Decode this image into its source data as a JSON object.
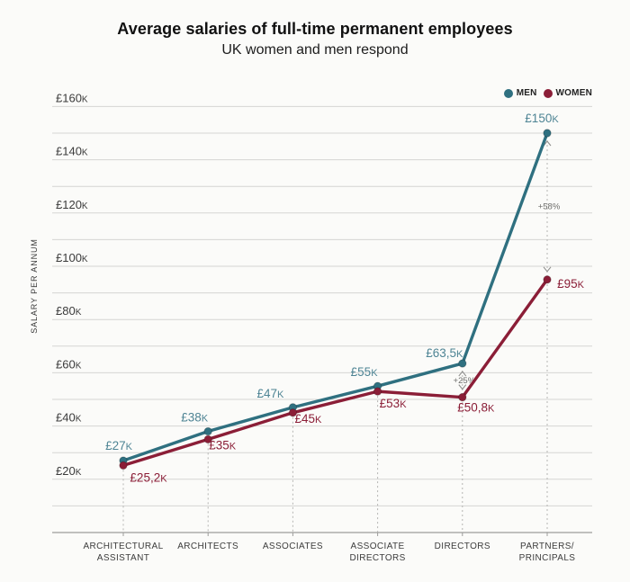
{
  "chart_data": {
    "type": "line",
    "title": "Average salaries of full-time permanent employees",
    "subtitle": "UK women and men respond",
    "ylabel": "SALARY PER ANNUM",
    "xlabel": "",
    "grid": true,
    "legend_position": "top-right",
    "ylim": [
      0,
      160
    ],
    "y_unit": "GBP thousands",
    "y_axis": {
      "grid_step": 10,
      "label_step": 20,
      "ticks": [
        {
          "value": 160,
          "label": "£160K"
        },
        {
          "value": 140,
          "label": "£140K"
        },
        {
          "value": 120,
          "label": "£120K"
        },
        {
          "value": 100,
          "label": "£100K"
        },
        {
          "value": 80,
          "label": "£80K"
        },
        {
          "value": 60,
          "label": "£60K"
        },
        {
          "value": 40,
          "label": "£40K"
        },
        {
          "value": 20,
          "label": "£20K"
        }
      ]
    },
    "categories": [
      [
        "ARCHITECTURAL",
        "ASSISTANT"
      ],
      [
        "ARCHITECTS"
      ],
      [
        "ASSOCIATES"
      ],
      [
        "ASSOCIATE",
        "DIRECTORS"
      ],
      [
        "DIRECTORS"
      ],
      [
        "PARTNERS/",
        "PRINCIPALS"
      ]
    ],
    "series": [
      {
        "name": "MEN",
        "color": "#2f7080",
        "label_color": "#4e8494",
        "values": [
          27,
          38,
          47,
          55,
          63.5,
          150
        ],
        "point_labels": [
          "£27K",
          "£38K",
          "£47K",
          "£55K",
          "£63,5K",
          "£150K"
        ]
      },
      {
        "name": "WOMEN",
        "color": "#8b1e37",
        "label_color": "#8b1e37",
        "values": [
          25.2,
          35,
          45,
          53,
          50.8,
          95
        ],
        "point_labels": [
          "£25,2K",
          "£35K",
          "£45K",
          "£53K",
          "£50,8K",
          "£95K"
        ]
      }
    ],
    "annotations": [
      {
        "category": "DIRECTORS",
        "category_index": 4,
        "label": "+25%"
      },
      {
        "category": "PARTNERS/PRINCIPALS",
        "category_index": 5,
        "label": "+58%"
      }
    ]
  }
}
